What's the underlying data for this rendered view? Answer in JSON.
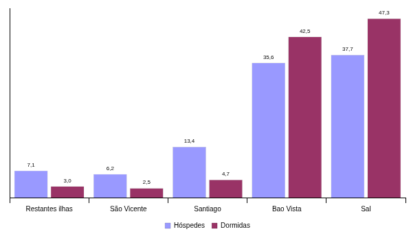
{
  "chart_data": {
    "type": "bar",
    "categories": [
      "Restantes ilhas",
      "São Vicente",
      "Santiago",
      "Bao Vista",
      "Sal"
    ],
    "series": [
      {
        "name": "Hóspedes",
        "color": "#9999ff",
        "values": [
          7.1,
          6.2,
          13.4,
          35.6,
          37.7
        ],
        "value_labels": [
          "7,1",
          "6,2",
          "13,4",
          "35,6",
          "37,7"
        ]
      },
      {
        "name": "Dormidas",
        "color": "#993366",
        "values": [
          3.0,
          2.5,
          4.7,
          42.5,
          47.3
        ],
        "value_labels": [
          "3,0",
          "2,5",
          "4,7",
          "42,5",
          "47,3"
        ]
      }
    ],
    "ylim": [
      0,
      50
    ],
    "grid": false,
    "legend": "bottom",
    "data_labels": true,
    "tick_labels": "x"
  }
}
